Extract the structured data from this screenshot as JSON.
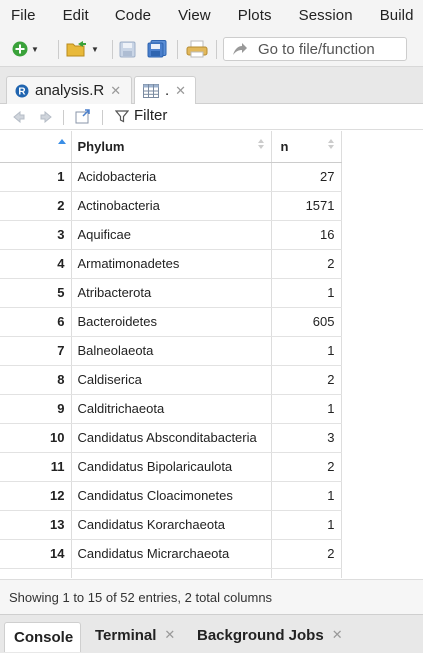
{
  "menu": [
    "File",
    "Edit",
    "Code",
    "View",
    "Plots",
    "Session",
    "Build"
  ],
  "toolbar": {
    "goto_placeholder": "Go to file/function",
    "icons": [
      "new-file-icon",
      "open-folder-icon",
      "save-icon",
      "save-all-icon",
      "print-icon",
      "arrow-icon"
    ]
  },
  "tabs": [
    {
      "label": "analysis.R",
      "icon": "r-file-icon"
    },
    {
      "label": ".",
      "icon": "table-icon"
    }
  ],
  "subbar": {
    "filter_label": "Filter"
  },
  "table": {
    "columns": [
      "",
      "Phylum",
      "n"
    ],
    "rows": [
      [
        "1",
        "Acidobacteria",
        "27"
      ],
      [
        "2",
        "Actinobacteria",
        "1571"
      ],
      [
        "3",
        "Aquificae",
        "16"
      ],
      [
        "4",
        "Armatimonadetes",
        "2"
      ],
      [
        "5",
        "Atribacterota",
        "1"
      ],
      [
        "6",
        "Bacteroidetes",
        "605"
      ],
      [
        "7",
        "Balneolaeota",
        "1"
      ],
      [
        "8",
        "Caldiserica",
        "2"
      ],
      [
        "9",
        "Calditrichaeota",
        "1"
      ],
      [
        "10",
        "Candidatus Absconditabacteria",
        "3"
      ],
      [
        "11",
        "Candidatus Bipolaricaulota",
        "2"
      ],
      [
        "12",
        "Candidatus Cloacimonetes",
        "1"
      ],
      [
        "13",
        "Candidatus Korarchaeota",
        "1"
      ],
      [
        "14",
        "Candidatus Micrarchaeota",
        "2"
      ],
      [
        "",
        "",
        ""
      ]
    ]
  },
  "status": "Showing 1 to 15 of 52 entries, 2 total columns",
  "bottom_tabs": [
    "Console",
    "Terminal",
    "Background Jobs"
  ],
  "colors": {
    "accent": "#3a8ee6",
    "r_blue": "#2165b0",
    "green": "#3aa23a"
  }
}
